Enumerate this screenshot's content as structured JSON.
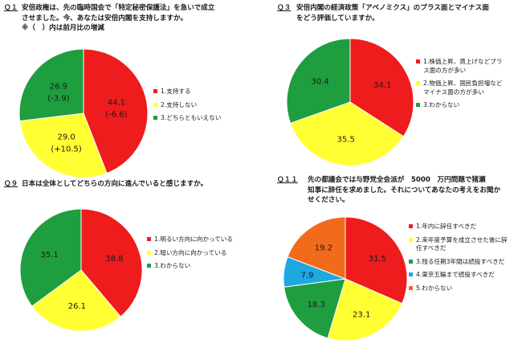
{
  "chart_data": [
    {
      "type": "pie",
      "id": "q1",
      "number": "Ｑ１",
      "title_lines": [
        "安倍政権は、先の臨時国会で「特定秘密保護法」を急いで成立",
        "させました。今、あなたは安倍内閣を支持しますか。",
        "※（　）内は前月比の増減"
      ],
      "slices": [
        {
          "legend": "1.支持する",
          "value": 44.1,
          "label": "44.1",
          "sublabel": "(-6.6)",
          "color": "#ee1c1c"
        },
        {
          "legend": "2.支持しない",
          "value": 29.0,
          "label": "29.0",
          "sublabel": "(+10.5)",
          "color": "#ffff33"
        },
        {
          "legend": "3.どちらともいえない",
          "value": 26.9,
          "label": "26.9",
          "sublabel": "(-3.9)",
          "color": "#1f9e3f"
        }
      ]
    },
    {
      "type": "pie",
      "id": "q3",
      "number": "Ｑ３",
      "title_lines": [
        "安倍内閣の経済政策「アベノミクス」のプラス面とマイナス面",
        "をどう評価していますか。"
      ],
      "slices": [
        {
          "legend": "1.株価上昇、賃上げなどプラス面の方が多い",
          "value": 34.1,
          "label": "34.1",
          "sublabel": "",
          "color": "#ee1c1c"
        },
        {
          "legend": "2.物価上昇、国民負担増などマイナス面の方が多い",
          "value": 35.5,
          "label": "35.5",
          "sublabel": "",
          "color": "#ffff33"
        },
        {
          "legend": "3.わからない",
          "value": 30.4,
          "label": "30.4",
          "sublabel": "",
          "color": "#1f9e3f"
        }
      ]
    },
    {
      "type": "pie",
      "id": "q9",
      "number": "Ｑ９",
      "title_lines": [
        "日本は全体としてどちらの方向に進んでいると感じますか。"
      ],
      "slices": [
        {
          "legend": "1.明るい方向に向かっている",
          "value": 38.8,
          "label": "38.8",
          "sublabel": "",
          "color": "#ee1c1c"
        },
        {
          "legend": "2.暗い方向に向かっている",
          "value": 26.1,
          "label": "26.1",
          "sublabel": "",
          "color": "#ffff33"
        },
        {
          "legend": "3.わからない",
          "value": 35.1,
          "label": "35.1",
          "sublabel": "",
          "color": "#1f9e3f"
        }
      ]
    },
    {
      "type": "pie",
      "id": "q11",
      "number": "Ｑ１１",
      "title_lines": [
        "先の都議会では与野党全会派が　5000　万円問題で猪瀬",
        "知事に辞任を求めました。それについてあなたの考えをお聞か",
        "せください。"
      ],
      "slices": [
        {
          "legend": "1.年内に辞任すべきだ",
          "value": 31.5,
          "label": "31.5",
          "sublabel": "",
          "color": "#ee1c1c"
        },
        {
          "legend": "2.来年度予算を成立させた後に辞任すべきだ",
          "value": 23.1,
          "label": "23.1",
          "sublabel": "",
          "color": "#ffff33"
        },
        {
          "legend": "3.残る任期3年間は続投すべきだ",
          "value": 18.3,
          "label": "18.3",
          "sublabel": "",
          "color": "#1f9e3f"
        },
        {
          "legend": "4.東京五輪まで続投すべきだ",
          "value": 7.9,
          "label": "7.9",
          "sublabel": "",
          "color": "#1da8e0"
        },
        {
          "legend": "5.わからない",
          "value": 19.2,
          "label": "19.2",
          "sublabel": "",
          "color": "#f26b1d"
        }
      ]
    }
  ]
}
